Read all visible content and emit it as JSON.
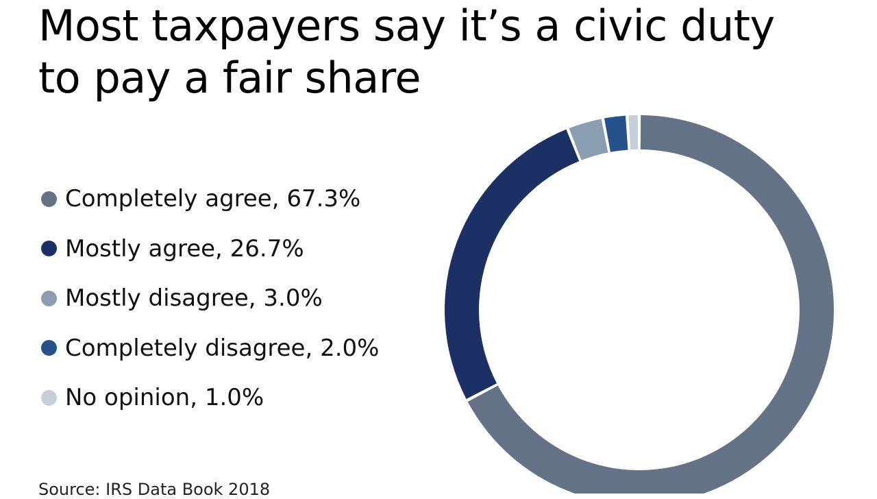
{
  "title": "Most taxpayers say it’s a civic duty to pay a fair share",
  "source": "Source: IRS Data Book 2018",
  "legend": [
    {
      "label": "Completely agree, 67.3%",
      "color": "#647386"
    },
    {
      "label": "Mostly agree, 26.7%",
      "color": "#1b3166"
    },
    {
      "label": "Mostly disagree, 3.0%",
      "color": "#8a9db1"
    },
    {
      "label": "Completely disagree, 2.0%",
      "color": "#26528c"
    },
    {
      "label": "No opinion, 1.0%",
      "color": "#c6cfd8"
    }
  ],
  "chart_data": {
    "type": "pie",
    "subtype": "donut",
    "title": "Most taxpayers say it’s a civic duty to pay a fair share",
    "categories": [
      "Completely agree",
      "Mostly agree",
      "Mostly disagree",
      "Completely disagree",
      "No opinion"
    ],
    "values": [
      67.3,
      26.7,
      3.0,
      2.0,
      1.0
    ],
    "unit": "%",
    "colors": [
      "#647386",
      "#1b3166",
      "#8a9db1",
      "#26528c",
      "#c6cfd8"
    ],
    "legend_position": "left",
    "start_angle": "12 o'clock, clockwise",
    "source": "Source: IRS Data Book 2018"
  }
}
